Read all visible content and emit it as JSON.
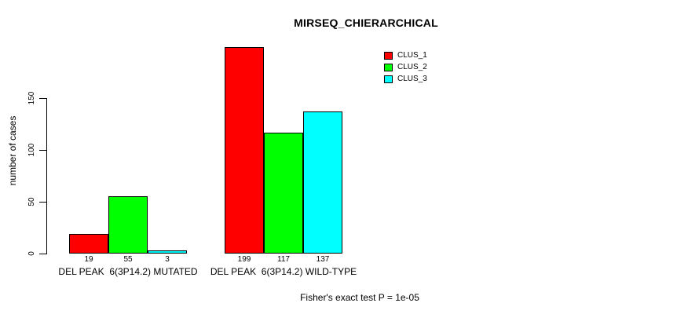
{
  "chart_data": {
    "type": "bar",
    "title": "MIRSEQ_CHIERARCHICAL",
    "ylabel": "number of cases",
    "xlabel": "",
    "categories": [
      "DEL PEAK  6(3P14.2) MUTATED",
      "DEL PEAK  6(3P14.2) WILD-TYPE"
    ],
    "series": [
      {
        "name": "CLUS_1",
        "color": "#ff0000",
        "values": [
          19,
          199
        ]
      },
      {
        "name": "CLUS_2",
        "color": "#00ff00",
        "values": [
          55,
          117
        ]
      },
      {
        "name": "CLUS_3",
        "color": "#00ffff",
        "values": [
          3,
          137
        ]
      }
    ],
    "value_labels": [
      [
        19,
        55,
        3
      ],
      [
        199,
        117,
        137
      ]
    ],
    "yticks": [
      0,
      50,
      100,
      150
    ],
    "ylim": [
      0,
      150
    ],
    "grid": false,
    "legend_position": "top-right",
    "annotation": "Fisher's exact test P = 1e-05",
    "colors": {
      "bar_border": "#000000",
      "background": "#ffffff",
      "text": "#000000"
    }
  }
}
